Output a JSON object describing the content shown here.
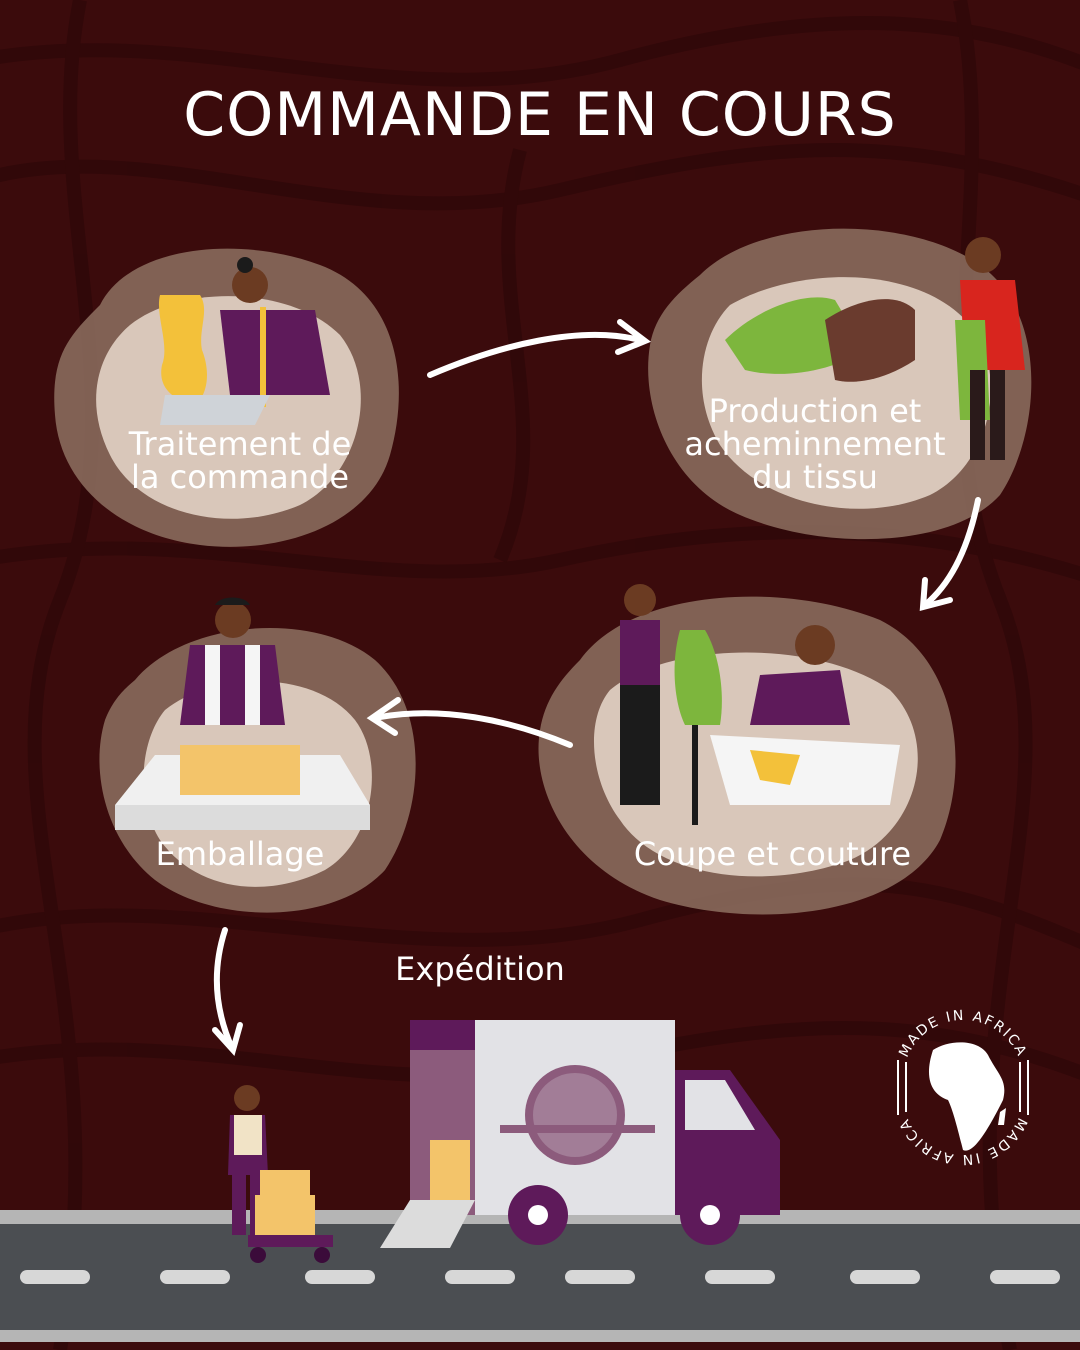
{
  "title": "COMMANDE EN COURS",
  "steps": {
    "traitement": {
      "line1": "Traitement de",
      "line2": "la commande"
    },
    "production": {
      "line1": "Production et",
      "line2": "acheminnement",
      "line3": "du tissu"
    },
    "coupe": {
      "label": "Coupe et couture"
    },
    "emballage": {
      "label": "Emballage"
    },
    "expedition": {
      "label": "Expédition"
    }
  },
  "badge": {
    "text": "MADE IN AFRICA"
  },
  "colors": {
    "background": "#3b0b0c",
    "blob": "#8a6a5c",
    "purple": "#5e1a5a",
    "yellow": "#f3c13a",
    "green": "#7db63d",
    "road": "#4b4e52"
  }
}
